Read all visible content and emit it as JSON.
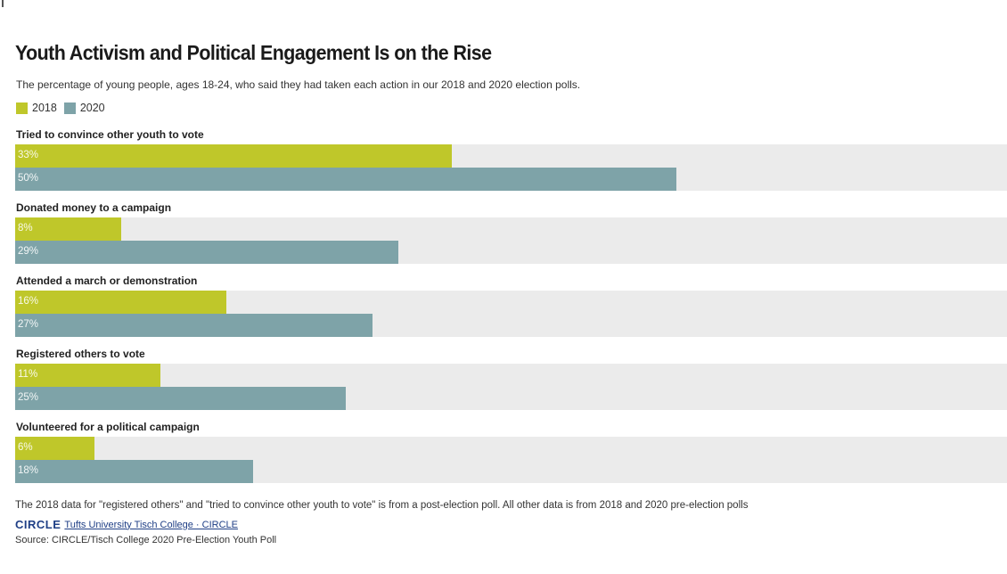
{
  "colors": {
    "y2018": "#bfc72a",
    "y2020": "#7ea3a8",
    "track": "#ebebeb"
  },
  "chart_data": {
    "type": "bar",
    "orientation": "horizontal",
    "title": "Youth Activism and Political Engagement Is on the Rise",
    "subtitle": "The percentage of young people, ages 18-24, who said they had taken each action in our 2018 and 2020 election polls.",
    "categories": [
      "Tried to convince other youth to vote",
      "Donated money to a campaign",
      "Attended a march or demonstration",
      "Registered others to vote",
      "Volunteered for a political campaign"
    ],
    "series": [
      {
        "name": "2018",
        "values": [
          33,
          8,
          16,
          11,
          6
        ]
      },
      {
        "name": "2020",
        "values": [
          50,
          29,
          27,
          25,
          18
        ]
      }
    ],
    "xlim": [
      0,
      75
    ],
    "legend_position": "top-left",
    "grid": false
  },
  "footnote": "The 2018 data for \"registered others\" and \"tried to convince other youth to vote\" is from a post-election poll. All other data is from 2018 and 2020 pre-election polls",
  "brand": {
    "logo": "CIRCLE",
    "link": "Tufts University Tisch College · CIRCLE"
  },
  "source": "Source: CIRCLE/Tisch College 2020 Pre-Election Youth Poll"
}
